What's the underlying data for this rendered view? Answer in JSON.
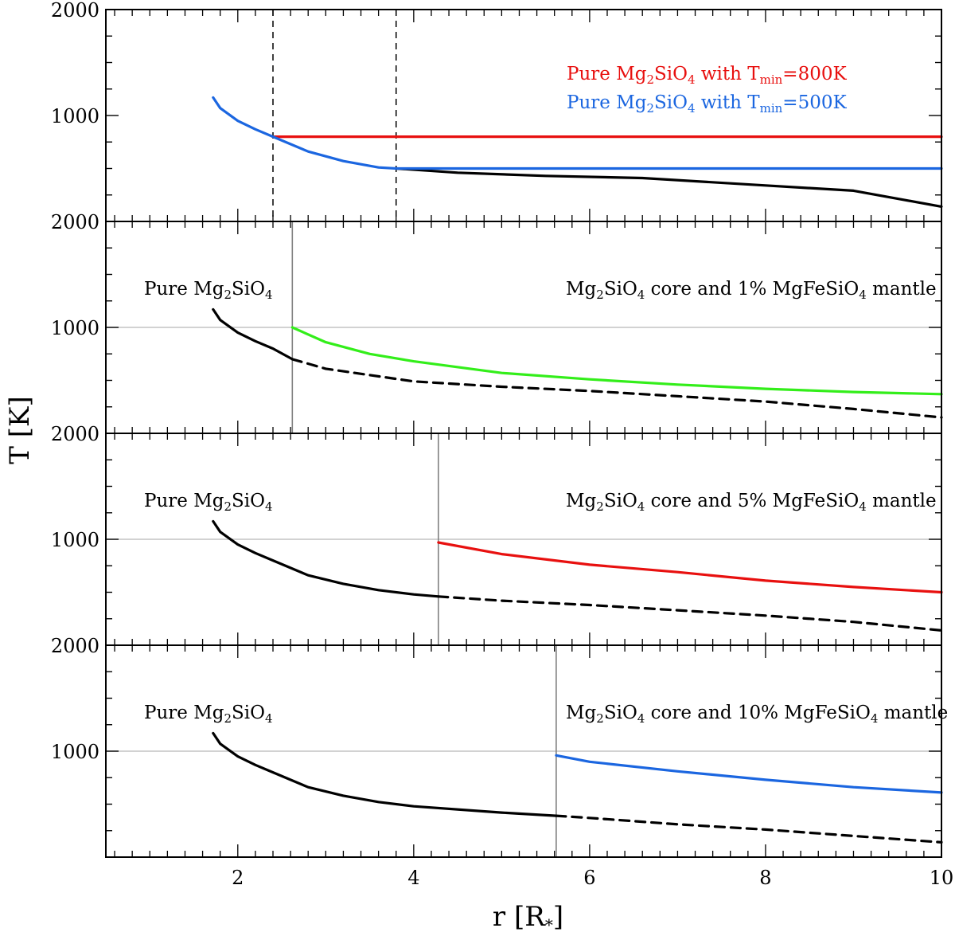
{
  "chart_data": {
    "type": "line",
    "xlabel": "r [R",
    "xlabel_sub": "*",
    "xlabel_close": "]",
    "ylabel": "T [K]",
    "xlim": [
      0.5,
      10
    ],
    "ylim": [
      0,
      2000
    ],
    "x_ticks": [
      "2",
      "4",
      "6",
      "8",
      "10"
    ],
    "y_ticks": [
      "2000",
      "1000"
    ],
    "panels": [
      {
        "vlines_dashed": [
          2.4,
          3.8
        ],
        "legend": [
          {
            "parts": [
              [
                "Pure Mg",
                ""
              ],
              [
                "2",
                "sub"
              ],
              [
                "SiO",
                ""
              ],
              [
                "4",
                "sub"
              ],
              [
                " with T",
                ""
              ],
              [
                "min",
                "sub"
              ],
              [
                "=800K",
                ""
              ]
            ],
            "color": "#e8100f"
          },
          {
            "parts": [
              [
                "Pure Mg",
                ""
              ],
              [
                "2",
                "sub"
              ],
              [
                "SiO",
                ""
              ],
              [
                "4",
                "sub"
              ],
              [
                " with T",
                ""
              ],
              [
                "min",
                "sub"
              ],
              [
                "=500K",
                ""
              ]
            ],
            "color": "#1b66e0"
          }
        ],
        "series": [
          {
            "name": "Pure Mg2SiO4 (no minimum)",
            "color": "#000000",
            "dashed": false,
            "x": [
              3.8,
              4.5,
              5.5,
              6.6,
              8.0,
              9.0,
              10.0
            ],
            "y": [
              500,
              460,
              430,
              410,
              340,
              290,
              140
            ]
          },
          {
            "name": "Pure Mg2SiO4 with Tmin=800K",
            "color": "#e8100f",
            "dashed": false,
            "x": [
              2.4,
              10.0
            ],
            "y": [
              800,
              800
            ]
          },
          {
            "name": "Pure Mg2SiO4 with Tmin=500K",
            "color": "#1b66e0",
            "dashed": false,
            "x": [
              1.72,
              1.8,
              2.0,
              2.2,
              2.4,
              2.8,
              3.2,
              3.6,
              3.8,
              10.0
            ],
            "y": [
              1170,
              1070,
              950,
              870,
              800,
              660,
              570,
              510,
              500,
              500
            ]
          }
        ]
      },
      {
        "vline_solid": 2.62,
        "label_left": [
          [
            "Pure Mg",
            ""
          ],
          [
            "2",
            "sub"
          ],
          [
            "SiO",
            ""
          ],
          [
            "4",
            "sub"
          ]
        ],
        "label_right": [
          [
            "Mg",
            ""
          ],
          [
            "2",
            "sub"
          ],
          [
            "SiO",
            ""
          ],
          [
            "4",
            "sub"
          ],
          [
            " core and 1% MgFeSiO",
            ""
          ],
          [
            "4",
            "sub"
          ],
          [
            " mantle",
            ""
          ]
        ],
        "series": [
          {
            "name": "Pure Mg2SiO4",
            "color": "#000000",
            "dashed": false,
            "x": [
              1.72,
              1.8,
              2.0,
              2.2,
              2.4,
              2.62
            ],
            "y": [
              1170,
              1070,
              950,
              870,
              800,
              700
            ]
          },
          {
            "name": "Pure Mg2SiO4 (continued)",
            "color": "#000000",
            "dashed": true,
            "x": [
              2.62,
              3.0,
              4.0,
              5.0,
              6.0,
              7.0,
              8.0,
              9.0,
              10.0
            ],
            "y": [
              700,
              610,
              490,
              440,
              400,
              350,
              300,
              230,
              150
            ]
          },
          {
            "name": "Mg2SiO4 core and 1% MgFeSiO4 mantle",
            "color": "#33ee1a",
            "dashed": false,
            "x": [
              2.62,
              3.0,
              3.5,
              4.0,
              5.0,
              6.0,
              7.0,
              8.0,
              9.0,
              10.0
            ],
            "y": [
              1000,
              860,
              750,
              680,
              570,
              510,
              460,
              420,
              390,
              370
            ]
          }
        ]
      },
      {
        "vline_solid": 4.28,
        "label_left": [
          [
            "Pure Mg",
            ""
          ],
          [
            "2",
            "sub"
          ],
          [
            "SiO",
            ""
          ],
          [
            "4",
            "sub"
          ]
        ],
        "label_right": [
          [
            "Mg",
            ""
          ],
          [
            "2",
            "sub"
          ],
          [
            "SiO",
            ""
          ],
          [
            "4",
            "sub"
          ],
          [
            " core and 5% MgFeSiO",
            ""
          ],
          [
            "4",
            "sub"
          ],
          [
            " mantle",
            ""
          ]
        ],
        "series": [
          {
            "name": "Pure Mg2SiO4",
            "color": "#000000",
            "dashed": false,
            "x": [
              1.72,
              1.8,
              2.0,
              2.2,
              2.4,
              2.8,
              3.2,
              3.6,
              4.0,
              4.28
            ],
            "y": [
              1170,
              1070,
              950,
              870,
              800,
              660,
              580,
              520,
              480,
              460
            ]
          },
          {
            "name": "Pure Mg2SiO4 (continued)",
            "color": "#000000",
            "dashed": true,
            "x": [
              4.28,
              5.0,
              6.0,
              7.0,
              8.0,
              9.0,
              10.0
            ],
            "y": [
              460,
              420,
              380,
              330,
              280,
              220,
              140
            ]
          },
          {
            "name": "Mg2SiO4 core and 5% MgFeSiO4 mantle",
            "color": "#e8100f",
            "dashed": false,
            "x": [
              4.28,
              5.0,
              6.0,
              7.0,
              8.0,
              9.0,
              10.0
            ],
            "y": [
              970,
              860,
              760,
              690,
              610,
              550,
              500
            ]
          }
        ]
      },
      {
        "vline_solid": 5.62,
        "label_left": [
          [
            "Pure Mg",
            ""
          ],
          [
            "2",
            "sub"
          ],
          [
            "SiO",
            ""
          ],
          [
            "4",
            "sub"
          ]
        ],
        "label_right": [
          [
            "Mg",
            ""
          ],
          [
            "2",
            "sub"
          ],
          [
            "SiO",
            ""
          ],
          [
            "4",
            "sub"
          ],
          [
            " core and 10% MgFeSiO",
            ""
          ],
          [
            "4",
            "sub"
          ],
          [
            " mantle",
            ""
          ]
        ],
        "series": [
          {
            "name": "Pure Mg2SiO4",
            "color": "#000000",
            "dashed": false,
            "x": [
              1.72,
              1.8,
              2.0,
              2.2,
              2.4,
              2.8,
              3.2,
              3.6,
              4.0,
              5.0,
              5.62
            ],
            "y": [
              1170,
              1070,
              950,
              870,
              800,
              660,
              580,
              520,
              480,
              420,
              390
            ]
          },
          {
            "name": "Pure Mg2SiO4 (continued)",
            "color": "#000000",
            "dashed": true,
            "x": [
              5.62,
              6.0,
              7.0,
              8.0,
              9.0,
              10.0
            ],
            "y": [
              390,
              370,
              310,
              260,
              200,
              140
            ]
          },
          {
            "name": "Mg2SiO4 core and 10% MgFeSiO4 mantle",
            "color": "#1b66e0",
            "dashed": false,
            "x": [
              5.62,
              6.0,
              7.0,
              8.0,
              9.0,
              10.0
            ],
            "y": [
              960,
              900,
              810,
              730,
              660,
              610
            ]
          }
        ]
      }
    ]
  }
}
